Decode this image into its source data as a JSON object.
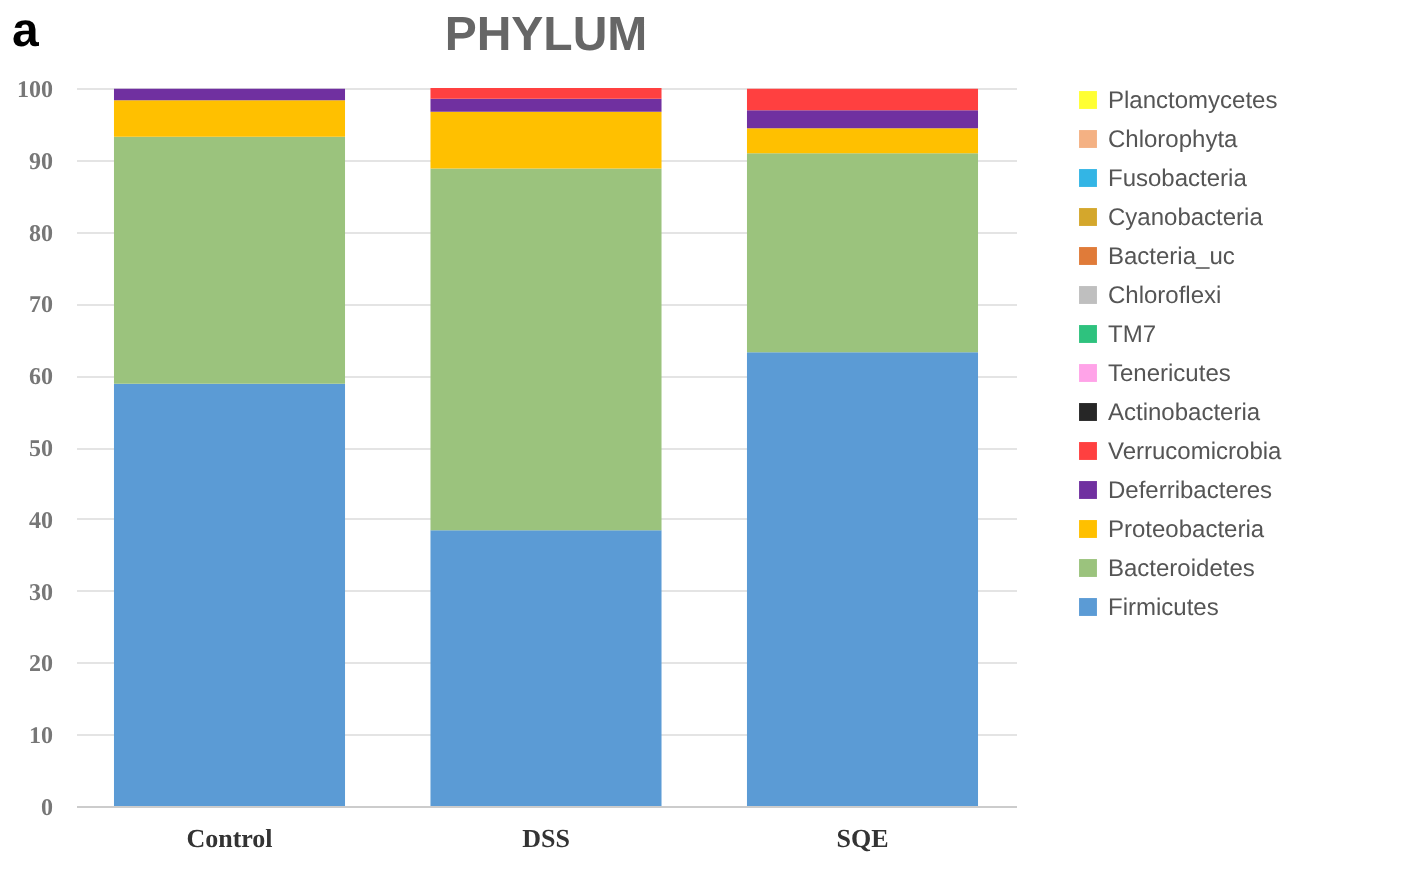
{
  "chart_data": {
    "type": "bar",
    "title": "PHYLUM",
    "annotations": [
      "a"
    ],
    "stacked": true,
    "categories": [
      "Control",
      "DSS",
      "SQE"
    ],
    "ylim": [
      0,
      100
    ],
    "yticks": [
      0,
      10,
      20,
      30,
      40,
      50,
      60,
      70,
      80,
      90,
      100
    ],
    "grid": "y",
    "legend": "right",
    "series": [
      {
        "name": "Firmicutes",
        "color": "#5b9bd5",
        "values": [
          58.8,
          38.4,
          63.2
        ]
      },
      {
        "name": "Bacteroidetes",
        "color": "#9bc37d",
        "values": [
          34.4,
          50.4,
          27.7
        ]
      },
      {
        "name": "Proteobacteria",
        "color": "#ffc000",
        "values": [
          5.1,
          7.9,
          3.5
        ]
      },
      {
        "name": "Deferribacteres",
        "color": "#7030a0",
        "values": [
          1.6,
          1.8,
          2.5
        ]
      },
      {
        "name": "Verrucomicrobia",
        "color": "#ff4040",
        "values": [
          0,
          1.5,
          3.0
        ]
      },
      {
        "name": "Actinobacteria",
        "color": "#262626",
        "values": [
          0,
          0,
          0
        ]
      },
      {
        "name": "Tenericutes",
        "color": "#ffa3e8",
        "values": [
          0,
          0,
          0
        ]
      },
      {
        "name": "TM7",
        "color": "#2ec27e",
        "values": [
          0,
          0,
          0
        ]
      },
      {
        "name": "Chloroflexi",
        "color": "#bfbfbf",
        "values": [
          0,
          0,
          0
        ]
      },
      {
        "name": "Bacteria_uc",
        "color": "#e07b39",
        "values": [
          0,
          0,
          0
        ]
      },
      {
        "name": "Cyanobacteria",
        "color": "#d4a72c",
        "values": [
          0,
          0,
          0
        ]
      },
      {
        "name": "Fusobacteria",
        "color": "#33b5e5",
        "values": [
          0,
          0,
          0
        ]
      },
      {
        "name": "Chlorophyta",
        "color": "#f4b183",
        "values": [
          0,
          0,
          0
        ]
      },
      {
        "name": "Planctomycetes",
        "color": "#ffff33",
        "values": [
          0,
          0,
          0
        ]
      }
    ]
  }
}
